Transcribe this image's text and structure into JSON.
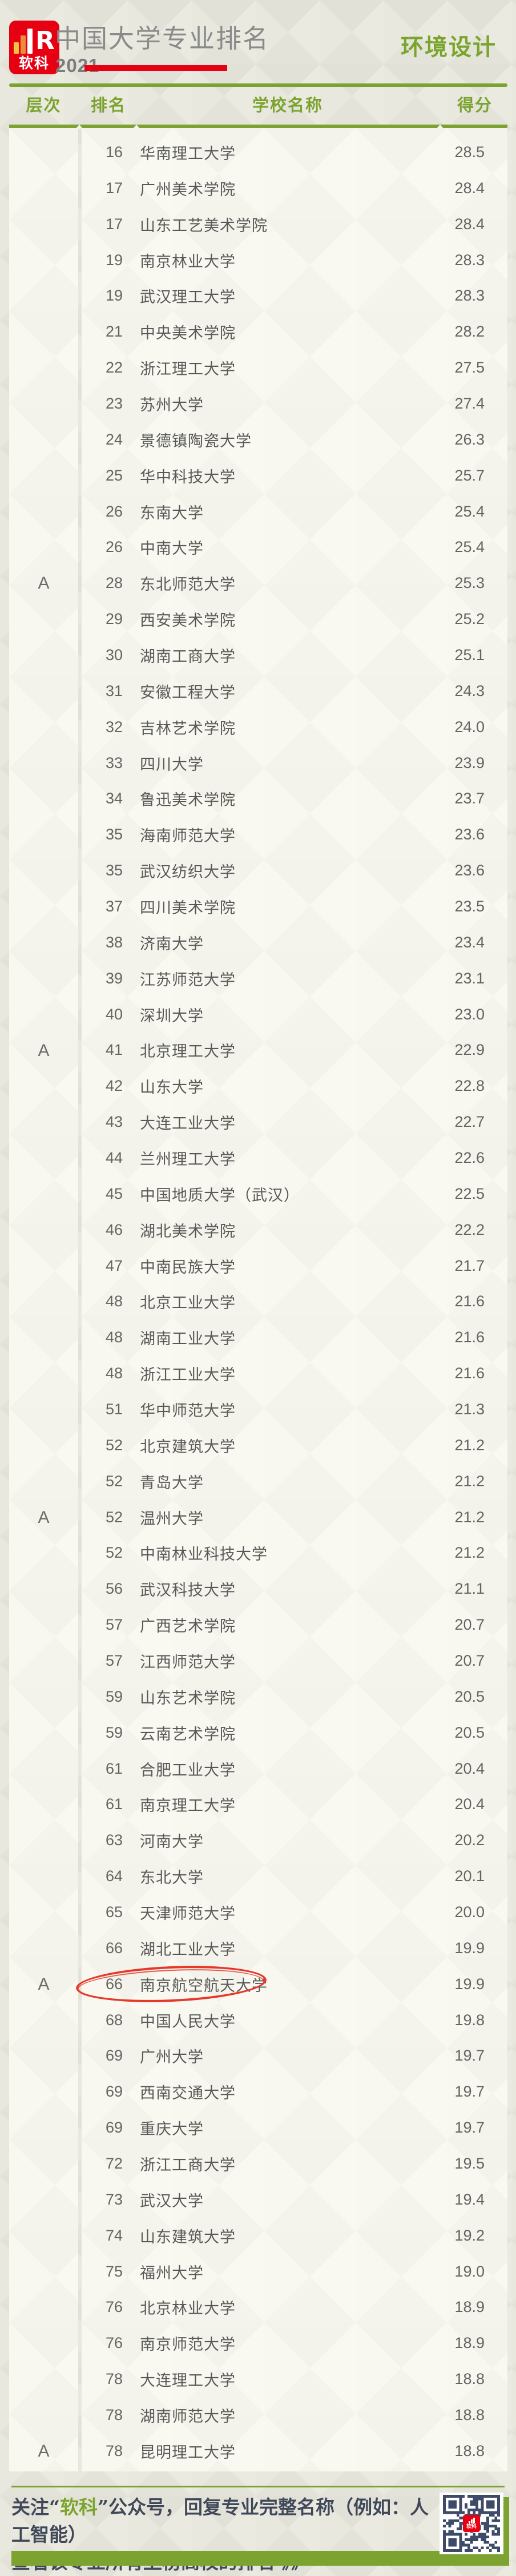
{
  "header": {
    "brand": "软科",
    "logo_letter": "R",
    "title": "中国大学专业排名",
    "year": "2021",
    "subject": "环境设计"
  },
  "table": {
    "columns": {
      "tier": "层次",
      "rank": "排名",
      "school": "学校名称",
      "score": "得分"
    },
    "tier_value": "A",
    "tier_label_row_indices": [
      12,
      25,
      38,
      51,
      64
    ],
    "highlight_row_index": 51,
    "rows": [
      {
        "rank": "16",
        "school": "华南理工大学",
        "score": "28.5"
      },
      {
        "rank": "17",
        "school": "广州美术学院",
        "score": "28.4"
      },
      {
        "rank": "17",
        "school": "山东工艺美术学院",
        "score": "28.4"
      },
      {
        "rank": "19",
        "school": "南京林业大学",
        "score": "28.3"
      },
      {
        "rank": "19",
        "school": "武汉理工大学",
        "score": "28.3"
      },
      {
        "rank": "21",
        "school": "中央美术学院",
        "score": "28.2"
      },
      {
        "rank": "22",
        "school": "浙江理工大学",
        "score": "27.5"
      },
      {
        "rank": "23",
        "school": "苏州大学",
        "score": "27.4"
      },
      {
        "rank": "24",
        "school": "景德镇陶瓷大学",
        "score": "26.3"
      },
      {
        "rank": "25",
        "school": "华中科技大学",
        "score": "25.7"
      },
      {
        "rank": "26",
        "school": "东南大学",
        "score": "25.4"
      },
      {
        "rank": "26",
        "school": "中南大学",
        "score": "25.4"
      },
      {
        "rank": "28",
        "school": "东北师范大学",
        "score": "25.3"
      },
      {
        "rank": "29",
        "school": "西安美术学院",
        "score": "25.2"
      },
      {
        "rank": "30",
        "school": "湖南工商大学",
        "score": "25.1"
      },
      {
        "rank": "31",
        "school": "安徽工程大学",
        "score": "24.3"
      },
      {
        "rank": "32",
        "school": "吉林艺术学院",
        "score": "24.0"
      },
      {
        "rank": "33",
        "school": "四川大学",
        "score": "23.9"
      },
      {
        "rank": "34",
        "school": "鲁迅美术学院",
        "score": "23.7"
      },
      {
        "rank": "35",
        "school": "海南师范大学",
        "score": "23.6"
      },
      {
        "rank": "35",
        "school": "武汉纺织大学",
        "score": "23.6"
      },
      {
        "rank": "37",
        "school": "四川美术学院",
        "score": "23.5"
      },
      {
        "rank": "38",
        "school": "济南大学",
        "score": "23.4"
      },
      {
        "rank": "39",
        "school": "江苏师范大学",
        "score": "23.1"
      },
      {
        "rank": "40",
        "school": "深圳大学",
        "score": "23.0"
      },
      {
        "rank": "41",
        "school": "北京理工大学",
        "score": "22.9"
      },
      {
        "rank": "42",
        "school": "山东大学",
        "score": "22.8"
      },
      {
        "rank": "43",
        "school": "大连工业大学",
        "score": "22.7"
      },
      {
        "rank": "44",
        "school": "兰州理工大学",
        "score": "22.6"
      },
      {
        "rank": "45",
        "school": "中国地质大学（武汉）",
        "score": "22.5"
      },
      {
        "rank": "46",
        "school": "湖北美术学院",
        "score": "22.2"
      },
      {
        "rank": "47",
        "school": "中南民族大学",
        "score": "21.7"
      },
      {
        "rank": "48",
        "school": "北京工业大学",
        "score": "21.6"
      },
      {
        "rank": "48",
        "school": "湖南工业大学",
        "score": "21.6"
      },
      {
        "rank": "48",
        "school": "浙江工业大学",
        "score": "21.6"
      },
      {
        "rank": "51",
        "school": "华中师范大学",
        "score": "21.3"
      },
      {
        "rank": "52",
        "school": "北京建筑大学",
        "score": "21.2"
      },
      {
        "rank": "52",
        "school": "青岛大学",
        "score": "21.2"
      },
      {
        "rank": "52",
        "school": "温州大学",
        "score": "21.2"
      },
      {
        "rank": "52",
        "school": "中南林业科技大学",
        "score": "21.2"
      },
      {
        "rank": "56",
        "school": "武汉科技大学",
        "score": "21.1"
      },
      {
        "rank": "57",
        "school": "广西艺术学院",
        "score": "20.7"
      },
      {
        "rank": "57",
        "school": "江西师范大学",
        "score": "20.7"
      },
      {
        "rank": "59",
        "school": "山东艺术学院",
        "score": "20.5"
      },
      {
        "rank": "59",
        "school": "云南艺术学院",
        "score": "20.5"
      },
      {
        "rank": "61",
        "school": "合肥工业大学",
        "score": "20.4"
      },
      {
        "rank": "61",
        "school": "南京理工大学",
        "score": "20.4"
      },
      {
        "rank": "63",
        "school": "河南大学",
        "score": "20.2"
      },
      {
        "rank": "64",
        "school": "东北大学",
        "score": "20.1"
      },
      {
        "rank": "65",
        "school": "天津师范大学",
        "score": "20.0"
      },
      {
        "rank": "66",
        "school": "湖北工业大学",
        "score": "19.9"
      },
      {
        "rank": "66",
        "school": "南京航空航天大学",
        "score": "19.9"
      },
      {
        "rank": "68",
        "school": "中国人民大学",
        "score": "19.8"
      },
      {
        "rank": "69",
        "school": "广州大学",
        "score": "19.7"
      },
      {
        "rank": "69",
        "school": "西南交通大学",
        "score": "19.7"
      },
      {
        "rank": "69",
        "school": "重庆大学",
        "score": "19.7"
      },
      {
        "rank": "72",
        "school": "浙江工商大学",
        "score": "19.5"
      },
      {
        "rank": "73",
        "school": "武汉大学",
        "score": "19.4"
      },
      {
        "rank": "74",
        "school": "山东建筑大学",
        "score": "19.2"
      },
      {
        "rank": "75",
        "school": "福州大学",
        "score": "19.0"
      },
      {
        "rank": "76",
        "school": "北京林业大学",
        "score": "18.9"
      },
      {
        "rank": "76",
        "school": "南京师范大学",
        "score": "18.9"
      },
      {
        "rank": "78",
        "school": "大连理工大学",
        "score": "18.8"
      },
      {
        "rank": "78",
        "school": "湖南师范大学",
        "score": "18.8"
      },
      {
        "rank": "78",
        "school": "昆明理工大学",
        "score": "18.8"
      }
    ]
  },
  "footer": {
    "line1_prefix": "关注“",
    "brand": "软科",
    "line1_suffix": "”公众号，回复专业完整名称（例如：人工智能）",
    "line2": "查看该专业所有上榜高校的排名 》》"
  },
  "colors": {
    "accent_green": "#7CA32F",
    "brand_red": "#E60012",
    "circle_red": "#E6372B",
    "qr_navy": "#3D4A68",
    "title_gray": "#8A8A8A",
    "footer_text": "#3F4759"
  }
}
